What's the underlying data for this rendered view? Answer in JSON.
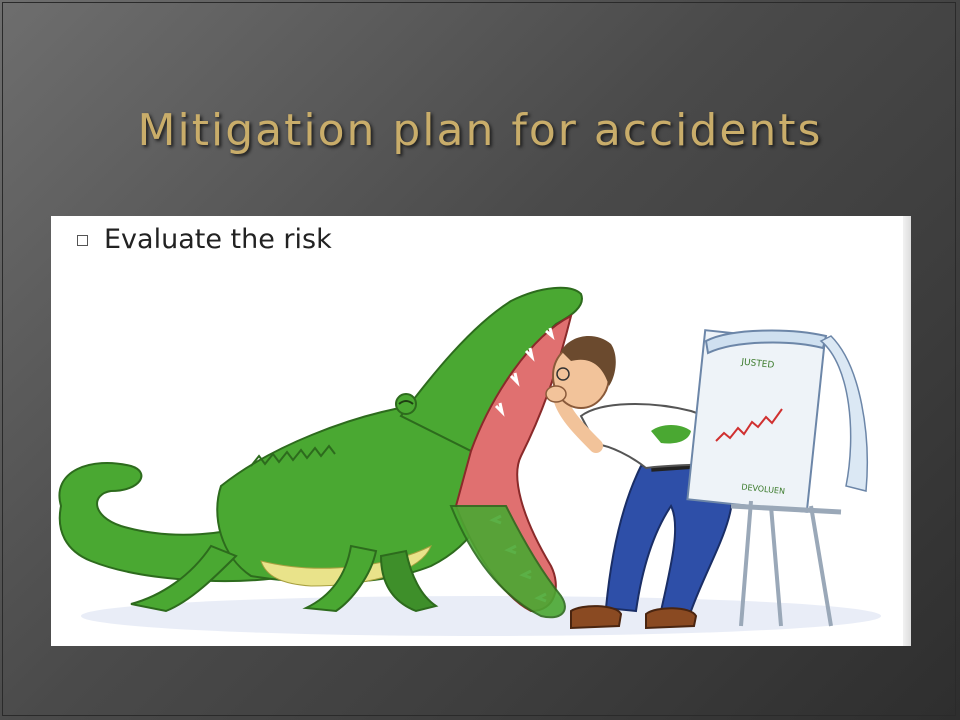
{
  "slide": {
    "title": "Mitigation plan for accidents",
    "bullets": [
      {
        "text": "Evaluate the risk"
      }
    ]
  },
  "illustration": {
    "subject": "cartoon",
    "flipchart_labels": [
      "JUSTED",
      "DEVOLUEN"
    ]
  },
  "colors": {
    "background": "#4a4a4a",
    "title": "#c9ad6a",
    "crocodile": "#4aa832",
    "mouth": "#e07070",
    "shirt": "#ffffff",
    "jeans": "#2e4fa8"
  }
}
